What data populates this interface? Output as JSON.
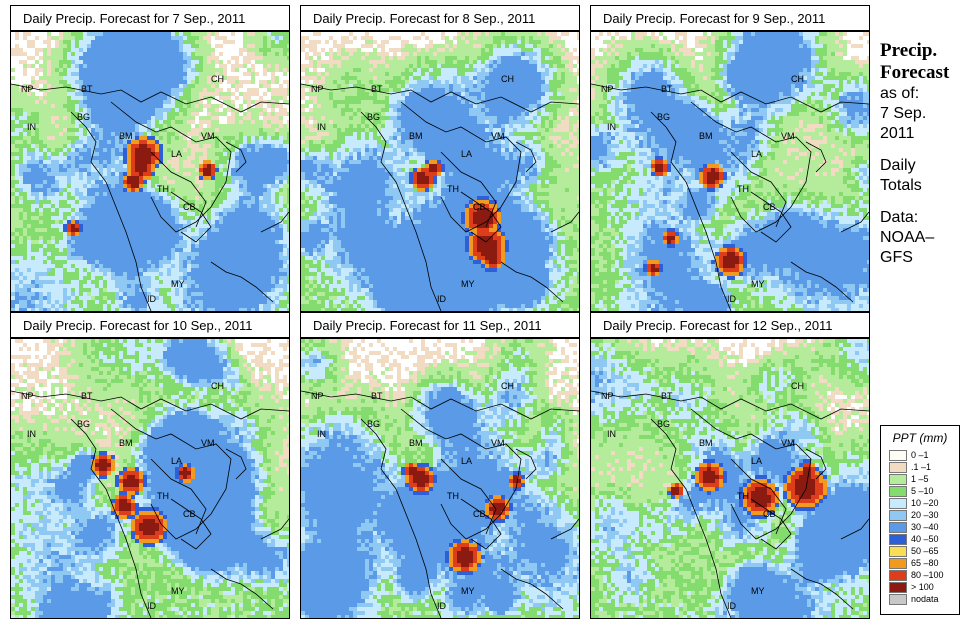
{
  "panels": [
    {
      "title": "Daily Precip. Forecast for  7 Sep., 2011",
      "seed": 7
    },
    {
      "title": "Daily Precip. Forecast for  8 Sep., 2011",
      "seed": 8
    },
    {
      "title": "Daily Precip. Forecast for  9 Sep., 2011",
      "seed": 9
    },
    {
      "title": "Daily Precip. Forecast for  10 Sep., 2011",
      "seed": 10
    },
    {
      "title": "Daily Precip. Forecast for  11 Sep., 2011",
      "seed": 11
    },
    {
      "title": "Daily Precip. Forecast for  12 Sep., 2011",
      "seed": 12
    }
  ],
  "region_labels": [
    "NP",
    "BT",
    "IN",
    "BG",
    "BM",
    "CH",
    "VM",
    "LA",
    "TH",
    "CB",
    "MY",
    "ID"
  ],
  "sidebar": {
    "title_line1": "Precip.",
    "title_line2": "Forecast",
    "asof_line1": "as of:",
    "asof_line2": "7 Sep.",
    "asof_line3": "2011",
    "daily_line1": "Daily",
    "daily_line2": "Totals",
    "data_line1": "Data:",
    "data_line2": "NOAA–",
    "data_line3": "GFS"
  },
  "legend": {
    "title": "PPT (mm)",
    "items": [
      {
        "label": "0 –1",
        "color": "#fdfdf4"
      },
      {
        "label": ".1 –1",
        "color": "#f1dcc3"
      },
      {
        "label": "1 –5",
        "color": "#b5ec9b"
      },
      {
        "label": "5 –10",
        "color": "#84dc6e"
      },
      {
        "label": "10 –20",
        "color": "#c7eafc"
      },
      {
        "label": "20 –30",
        "color": "#8fc9f3"
      },
      {
        "label": "30 –40",
        "color": "#5a9ae6"
      },
      {
        "label": "40 –50",
        "color": "#2f5fd6"
      },
      {
        "label": "50 –65",
        "color": "#f8de55"
      },
      {
        "label": "65 –80",
        "color": "#f19a20"
      },
      {
        "label": "80 –100",
        "color": "#de3d1c"
      },
      {
        "label": "> 100",
        "color": "#8b1b10"
      },
      {
        "label": "nodata",
        "color": "#c8c8c8"
      }
    ]
  }
}
